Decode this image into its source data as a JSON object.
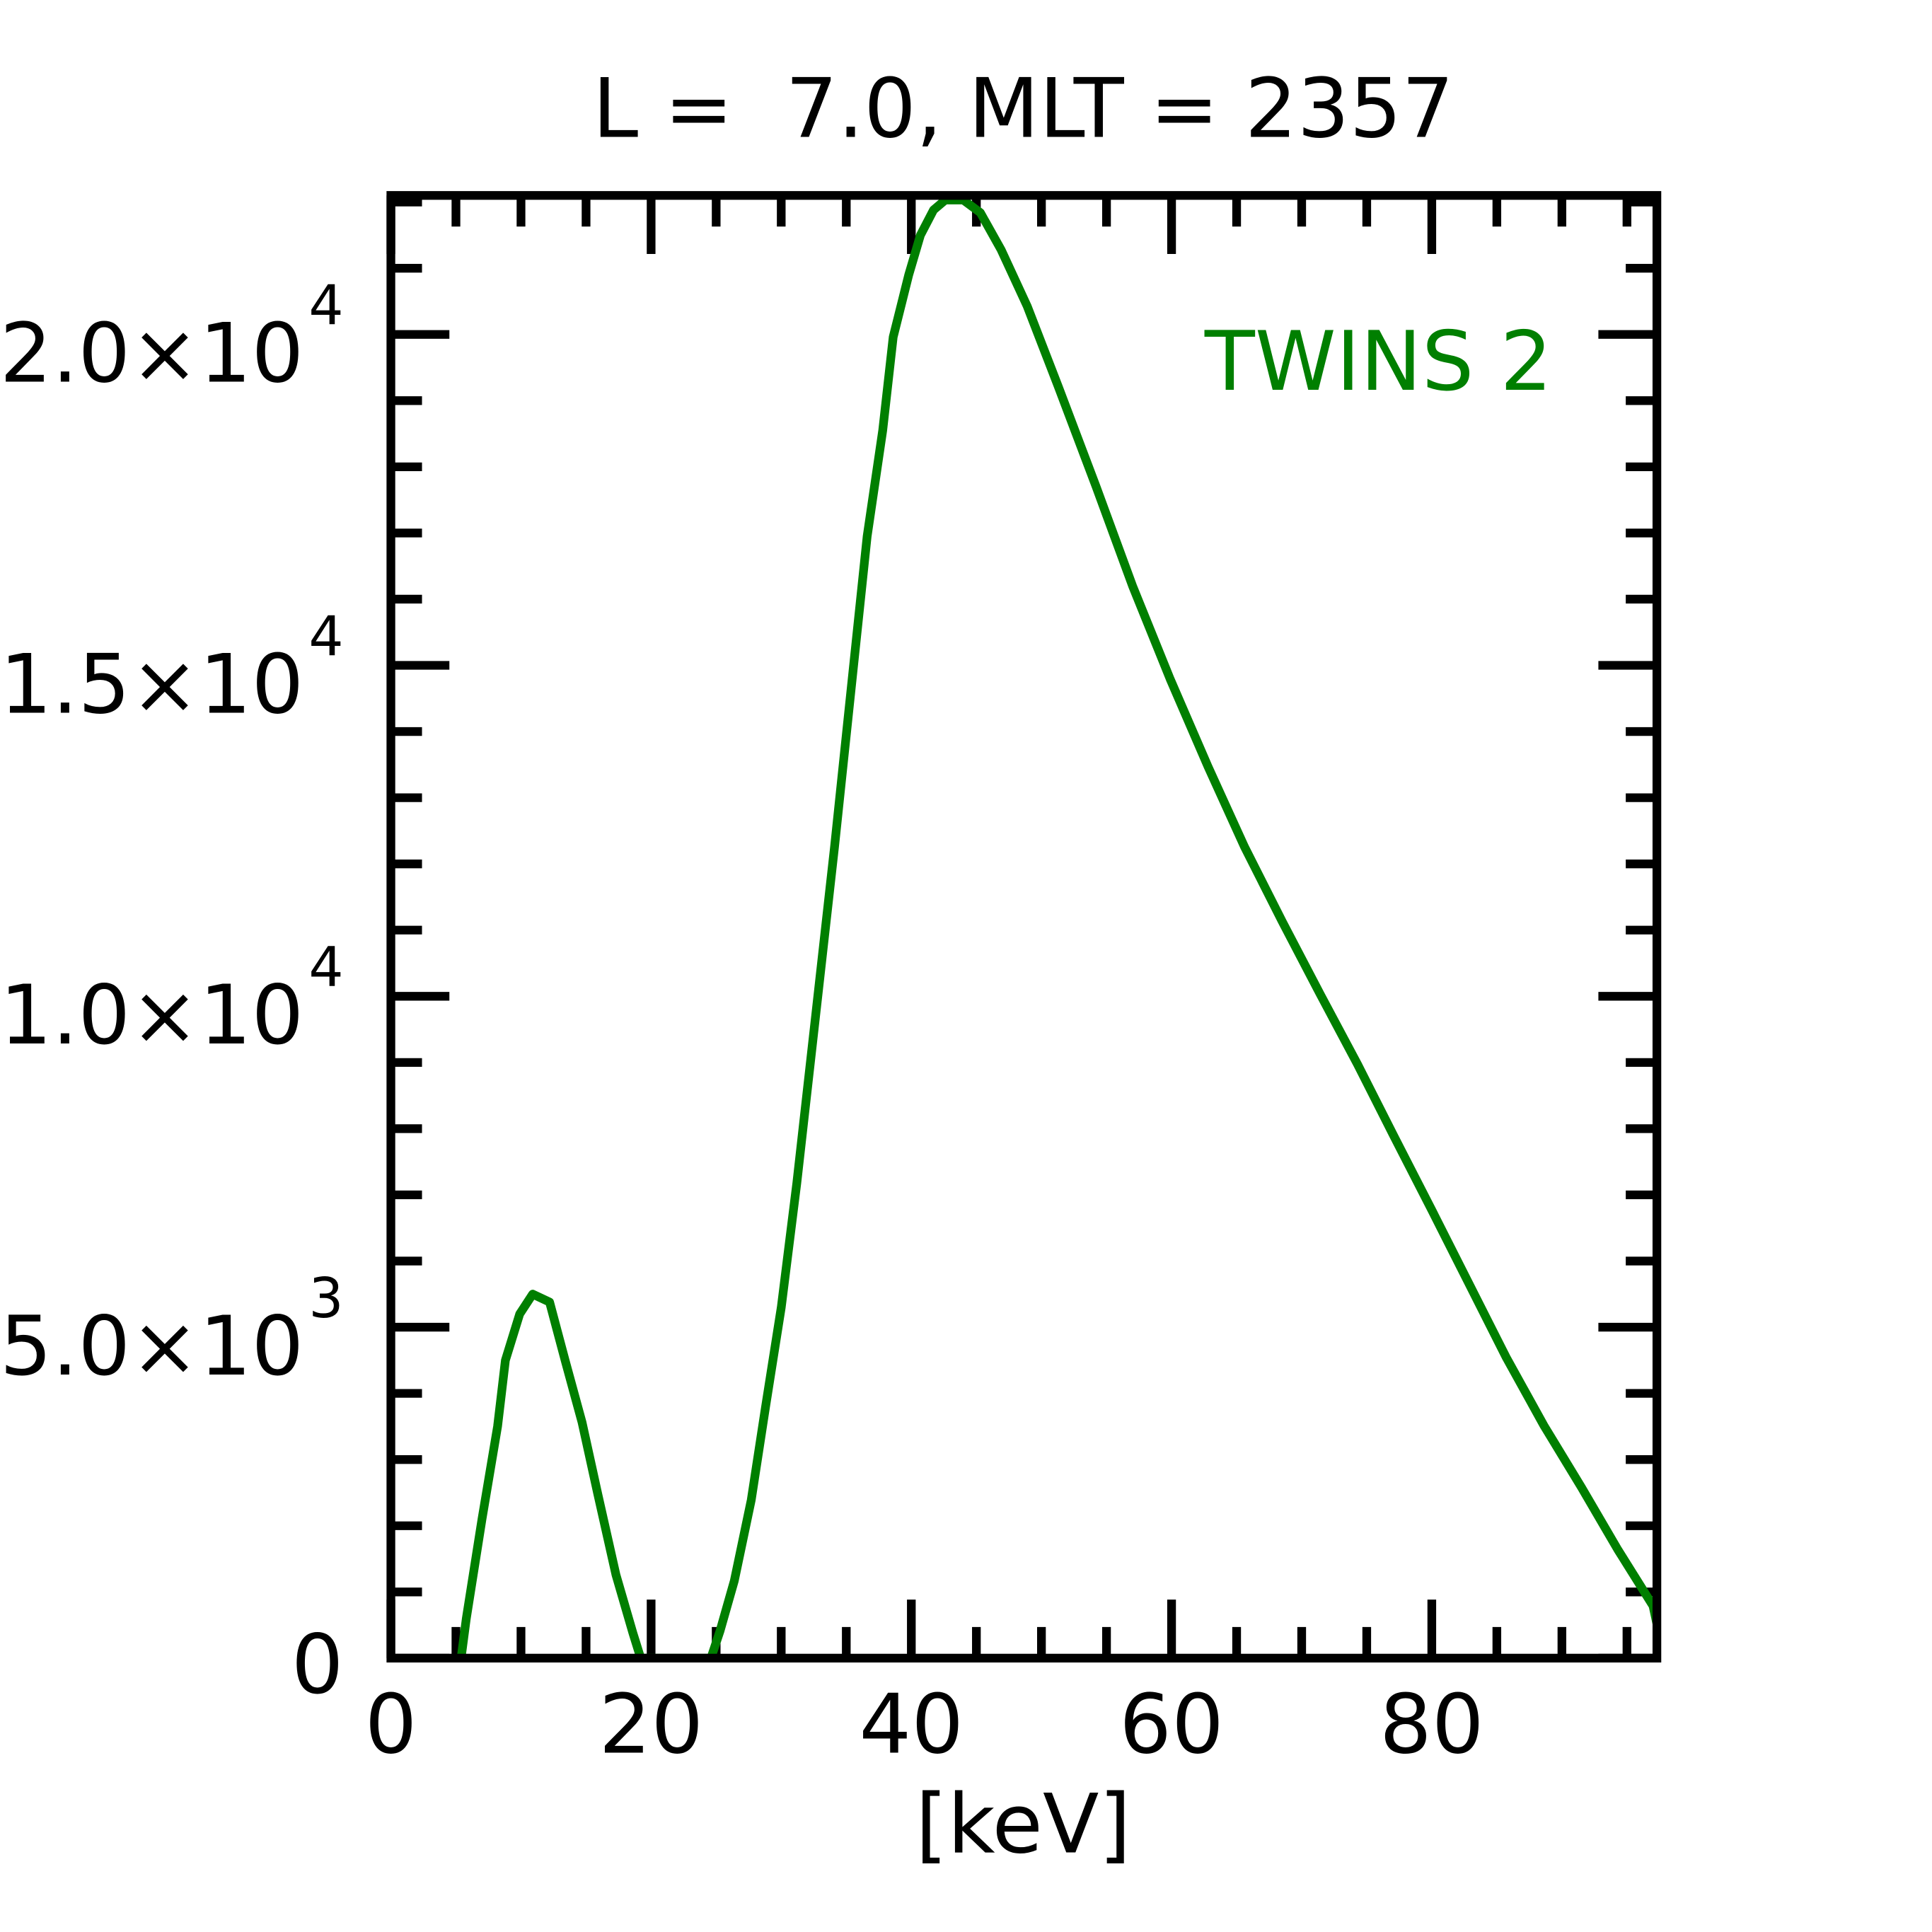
{
  "chart_data": {
    "type": "line",
    "title": "L =  7.0, MLT = 2357",
    "xlabel": "[keV]",
    "ylabel": "",
    "xlim": [
      0,
      97.3
    ],
    "ylim": [
      0,
      22100
    ],
    "x_ticks": [
      0,
      20,
      40,
      60,
      80
    ],
    "x_tick_labels": [
      "0",
      "20",
      "40",
      "60",
      "80"
    ],
    "x_minor_step": 5,
    "y_ticks": [
      0,
      5000,
      10000,
      15000,
      20000
    ],
    "y_tick_labels": [
      {
        "mantissa": "0",
        "exp": ""
      },
      {
        "mantissa": "5.0×10",
        "exp": "3"
      },
      {
        "mantissa": "1.0×10",
        "exp": "4"
      },
      {
        "mantissa": "1.5×10",
        "exp": "4"
      },
      {
        "mantissa": "2.0×10",
        "exp": "4"
      }
    ],
    "y_minor_step": 1000,
    "grid": false,
    "legend": {
      "position": "top-right"
    },
    "series": [
      {
        "name": "TWINS 2",
        "color": "#007f00",
        "x": [
          5.4,
          5.8,
          7.0,
          8.2,
          8.8,
          9.9,
          10.9,
          12.2,
          13.4,
          14.7,
          15.9,
          17.3,
          18.6,
          19.2,
          24.6,
          25.3,
          26.4,
          27.7,
          28.8,
          30.0,
          31.2,
          32.6,
          34.1,
          35.5,
          36.6,
          37.8,
          38.6,
          39.8,
          40.7,
          41.7,
          42.6,
          44.0,
          45.3,
          46.9,
          48.9,
          51.3,
          54.2,
          57.0,
          59.9,
          62.8,
          65.6,
          68.5,
          71.4,
          74.3,
          77.1,
          80.0,
          82.9,
          85.7,
          88.6,
          91.5,
          94.3,
          97.0,
          97.3
        ],
        "y": [
          0,
          600,
          2100,
          3500,
          4500,
          5200,
          5500,
          5380,
          4490,
          3560,
          2480,
          1260,
          380,
          0,
          0,
          410,
          1170,
          2390,
          3800,
          5300,
          7180,
          9620,
          12260,
          14890,
          16950,
          18550,
          19960,
          20900,
          21500,
          21880,
          22030,
          22030,
          21840,
          21280,
          20430,
          19210,
          17700,
          16200,
          14790,
          13470,
          12260,
          11130,
          10040,
          8970,
          7880,
          6770,
          5640,
          4550,
          3520,
          2580,
          1640,
          790,
          520
        ]
      }
    ]
  }
}
